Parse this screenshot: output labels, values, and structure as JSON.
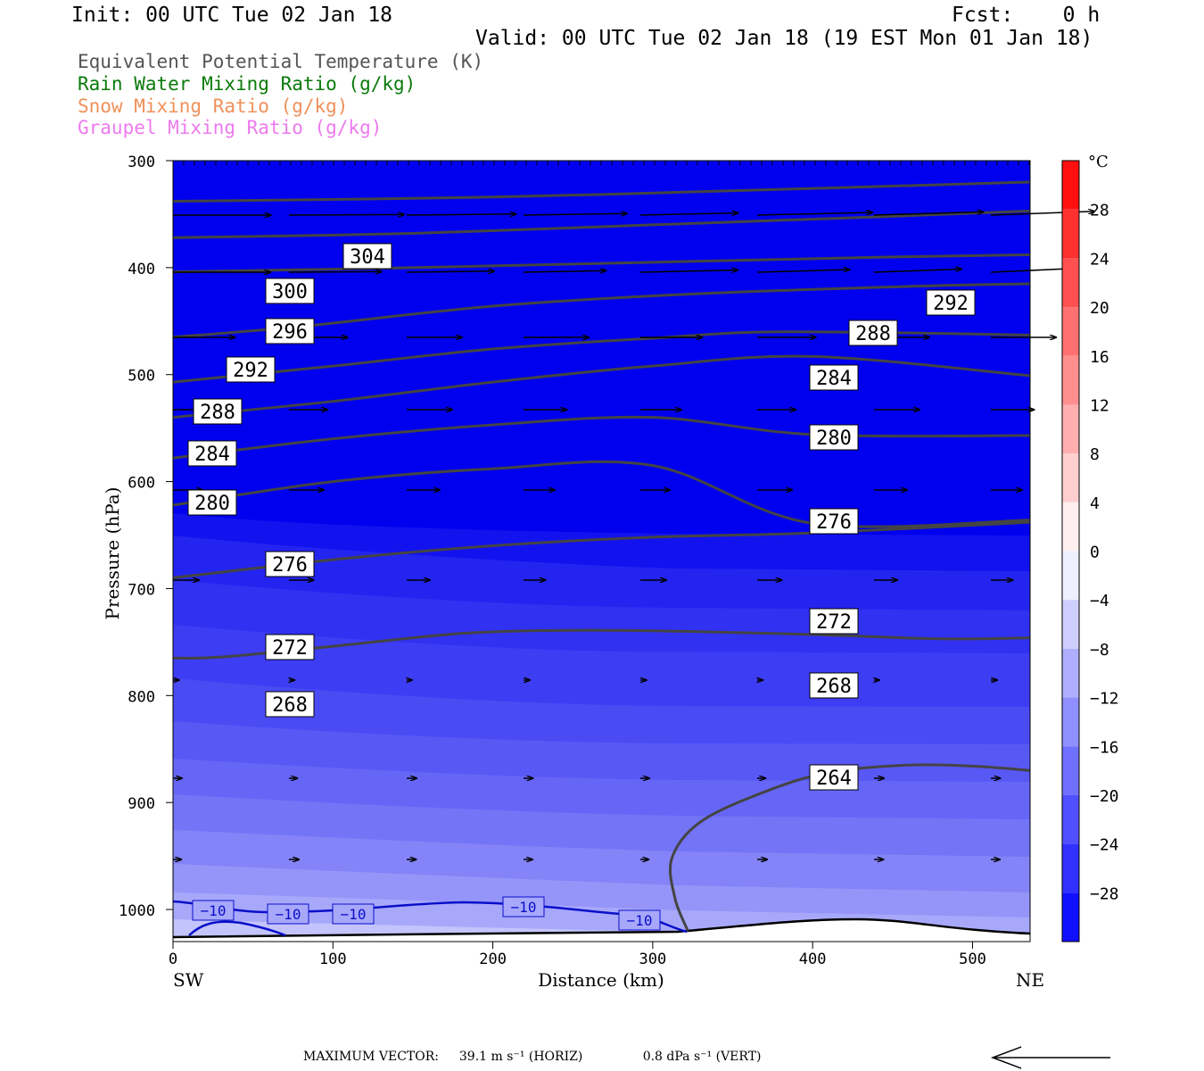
{
  "header": {
    "init": "Init: 00 UTC Tue 02 Jan 18",
    "fcst": "Fcst:    0 h",
    "valid": "Valid: 00 UTC Tue 02 Jan 18 (19 EST Mon 01 Jan 18)"
  },
  "legend": [
    {
      "label": "Equivalent Potential Temperature (K)",
      "color": "#555555"
    },
    {
      "label": "Rain Water Mixing Ratio (g/kg)",
      "color": "#0a7a0a"
    },
    {
      "label": "Snow Mixing Ratio (g/kg)",
      "color": "#f0905a"
    },
    {
      "label": "Graupel Mixing Ratio (g/kg)",
      "color": "#ee7aee"
    }
  ],
  "footer": {
    "max_vector_label": "MAXIMUM VECTOR:",
    "horiz": "39.1 m s⁻¹ (HORIZ)",
    "vert": "0.8 dPa s⁻¹ (VERT)"
  },
  "chart_data": {
    "type": "cross-section",
    "xlabel": "Distance (km)",
    "ylabel": "Pressure (hPa)",
    "x_ticks": [
      0,
      100,
      200,
      300,
      400,
      500
    ],
    "xlim": [
      0,
      536
    ],
    "y_ticks": [
      300,
      400,
      500,
      600,
      700,
      800,
      900,
      1000
    ],
    "ylim": [
      300,
      1030
    ],
    "y_scale": "linear (inverted)",
    "left_end_label": "SW",
    "right_end_label": "NE",
    "colorbar": {
      "unit": "°C",
      "ticks": [
        "28",
        "24",
        "20",
        "16",
        "12",
        "8",
        "4",
        "0",
        "−4",
        "−8",
        "−12",
        "−16",
        "−20",
        "−24",
        "−28"
      ],
      "tick_values": [
        28,
        24,
        20,
        16,
        12,
        8,
        4,
        0,
        -4,
        -8,
        -12,
        -16,
        -20,
        -24,
        -28
      ],
      "range": [
        -32,
        32
      ]
    },
    "theta_e_contours": [
      {
        "label": "304",
        "points": [
          [
            0,
            338
          ],
          [
            200,
            334
          ],
          [
            400,
            326
          ],
          [
            536,
            320
          ]
        ]
      },
      {
        "label": "300",
        "points": [
          [
            0,
            372
          ],
          [
            150,
            368
          ],
          [
            300,
            360
          ],
          [
            450,
            352
          ],
          [
            536,
            347
          ]
        ]
      },
      {
        "label": "296",
        "points": [
          [
            0,
            404
          ],
          [
            150,
            400
          ],
          [
            300,
            395
          ],
          [
            450,
            390
          ],
          [
            536,
            388
          ]
        ]
      },
      {
        "label": "292",
        "points": [
          [
            0,
            465
          ],
          [
            80,
            455
          ],
          [
            200,
            436
          ],
          [
            320,
            425
          ],
          [
            450,
            418
          ],
          [
            536,
            415
          ]
        ]
      },
      {
        "label": "288",
        "points": [
          [
            0,
            507
          ],
          [
            100,
            492
          ],
          [
            200,
            476
          ],
          [
            300,
            466
          ],
          [
            380,
            460
          ],
          [
            536,
            463
          ]
        ]
      },
      {
        "label": "284",
        "points": [
          [
            0,
            540
          ],
          [
            100,
            525
          ],
          [
            200,
            507
          ],
          [
            300,
            492
          ],
          [
            400,
            483
          ],
          [
            536,
            501
          ]
        ]
      },
      {
        "label": "280",
        "points": [
          [
            0,
            578
          ],
          [
            100,
            560
          ],
          [
            200,
            547
          ],
          [
            300,
            540
          ],
          [
            400,
            556
          ],
          [
            536,
            557
          ]
        ]
      },
      {
        "label": "276",
        "points": [
          [
            0,
            622
          ],
          [
            100,
            600
          ],
          [
            200,
            588
          ],
          [
            300,
            585
          ],
          [
            400,
            639
          ],
          [
            536,
            636
          ]
        ]
      },
      {
        "label": "272",
        "points": [
          [
            0,
            690
          ],
          [
            100,
            673
          ],
          [
            200,
            660
          ],
          [
            300,
            652
          ],
          [
            400,
            648
          ],
          [
            536,
            638
          ]
        ]
      },
      {
        "label": "268",
        "points": [
          [
            0,
            765
          ],
          [
            30,
            764
          ],
          [
            100,
            754
          ],
          [
            180,
            742
          ],
          [
            250,
            739
          ],
          [
            320,
            740
          ],
          [
            400,
            743
          ],
          [
            480,
            747
          ],
          [
            536,
            746
          ]
        ]
      },
      {
        "label": "264",
        "points": [
          [
            322,
            1020
          ],
          [
            314,
            990
          ],
          [
            312,
            952
          ],
          [
            330,
            918
          ],
          [
            370,
            890
          ],
          [
            410,
            872
          ],
          [
            460,
            865
          ],
          [
            500,
            866
          ],
          [
            536,
            870
          ]
        ]
      }
    ],
    "temperature_contours": [
      {
        "label": "−10",
        "value": -10
      }
    ]
  }
}
